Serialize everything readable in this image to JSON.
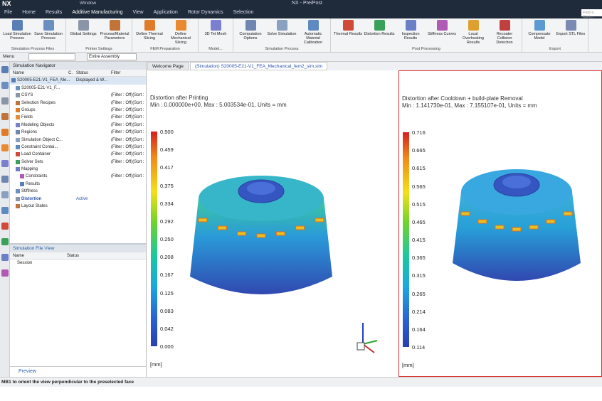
{
  "header": {
    "app": "NX",
    "window_menu": "Window",
    "title": "NX - Pre/Post",
    "search": "Find a Com..."
  },
  "menu": [
    "File",
    "Home",
    "Results",
    "Additive Manufacturing",
    "View",
    "Application",
    "Rotor Dynamics",
    "Selection"
  ],
  "ribbon": [
    {
      "title": "Simulation Process Files",
      "buttons": [
        "Load Simulation Process",
        "Save Simulation Process"
      ]
    },
    {
      "title": "Printer Settings",
      "buttons": [
        "Global Settings",
        "Process/Material Parameters"
      ]
    },
    {
      "title": "FEM Preparation",
      "buttons": [
        "Define Thermal Slicing",
        "Define Mechanical Slicing"
      ]
    },
    {
      "title": "Model...",
      "buttons": [
        "3D Tet Mesh"
      ]
    },
    {
      "title": "Simulation Process",
      "buttons": [
        "Computation Options",
        "Solve Simulation",
        "Automatic Material Calibration"
      ]
    },
    {
      "title": "Post Processing",
      "buttons": [
        "Thermal Results",
        "Distortion Results",
        "Inspection Results",
        "Stiffness Curves",
        "Local Overheating Results",
        "Recoater Collision Detection"
      ]
    },
    {
      "title": "Export",
      "buttons": [
        "Compensate Model",
        "Export STL Files"
      ]
    }
  ],
  "toolbar": {
    "menu": "Menu",
    "assembly": "Entire Assembly"
  },
  "navigator": {
    "title": "Simulation Navigator",
    "columns": [
      "Name",
      "C.",
      "Status",
      "Filter"
    ],
    "rows": [
      {
        "name": "S20005-E21-V1_FEA_Me...",
        "status": "Displayed & W..."
      },
      {
        "name": "S20005-E21-V1_F..."
      },
      {
        "name": "CSYS",
        "filter": "(Filter : Off)(Sort :"
      },
      {
        "name": "Selection Recipes",
        "filter": "(Filter : Off)(Sort :"
      },
      {
        "name": "Groups",
        "filter": "(Filter : Off)(Sort :"
      },
      {
        "name": "Fields",
        "filter": "(Filter : Off)(Sort :"
      },
      {
        "name": "Modeling Objects",
        "filter": "(Filter : Off)(Sort :"
      },
      {
        "name": "Regions",
        "filter": "(Filter : Off)(Sort :"
      },
      {
        "name": "Simulation Object C...",
        "filter": "(Filter : Off)(Sort :"
      },
      {
        "name": "Constraint Contai...",
        "filter": "(Filter : Off)(Sort :"
      },
      {
        "name": "Load Container",
        "filter": "(Filter : Off)(Sort :"
      },
      {
        "name": "Solver Sets",
        "filter": "(Filter : Off)(Sort :"
      },
      {
        "name": "Mapping"
      },
      {
        "name": "Constraints",
        "filter": "(Filter : Off)(Sort :"
      },
      {
        "name": "Results"
      },
      {
        "name": "Stiffness"
      },
      {
        "name": "Distortion",
        "status": "Active"
      },
      {
        "name": "Layout States"
      }
    ]
  },
  "file_view": {
    "title": "Simulation File View",
    "columns": [
      "Name",
      "Status"
    ],
    "rows": [
      "Session"
    ]
  },
  "preview": "Preview",
  "tabs": [
    "Welcome Page",
    "(Simulation) S20005-E21-V1_FEA_Mechanical_fem2_sim.sim"
  ],
  "viewports": [
    {
      "title": "Distortion after Printing",
      "subtitle": "Min : 0.000000e+00, Max : 5.003534e-01, Units = mm",
      "legend": [
        "0.500",
        "0.459",
        "0.417",
        "0.375",
        "0.334",
        "0.292",
        "0.250",
        "0.208",
        "0.167",
        "0.125",
        "0.083",
        "0.042",
        "0.000"
      ],
      "unit": "[mm]"
    },
    {
      "title": "Distortion after Cooldown + build-plate Removal",
      "subtitle": "Min : 1.141730e-01, Max : 7.155107e-01, Units = mm",
      "legend": [
        "0.716",
        "0.665",
        "0.615",
        "0.565",
        "0.515",
        "0.465",
        "0.415",
        "0.365",
        "0.315",
        "0.265",
        "0.214",
        "0.164",
        "0.114"
      ],
      "unit": "[mm]"
    }
  ],
  "status_bar": "MB1 to orient the view perpendicular to the preselected face"
}
